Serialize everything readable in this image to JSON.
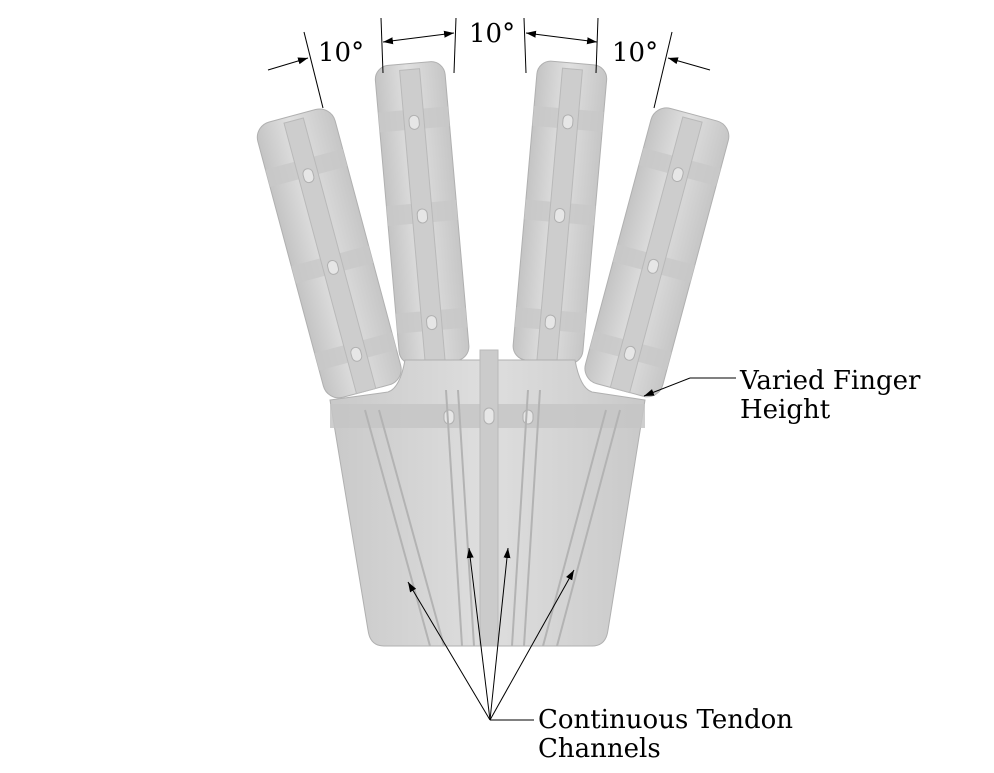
{
  "angles": {
    "left": "10°",
    "center": "10°",
    "right": "10°"
  },
  "callouts": {
    "finger_height_line1": "Varied Finger",
    "finger_height_line2": "Height",
    "tendon_line1": "Continuous Tendon",
    "tendon_line2": "Channels"
  },
  "colors": {
    "body_light": "#dcdcdc",
    "body_mid": "#cfcfcf",
    "body_dark": "#bdbdbd",
    "outline": "#a8a8a8",
    "channel": "#c2c2c2",
    "leader": "#000000"
  }
}
